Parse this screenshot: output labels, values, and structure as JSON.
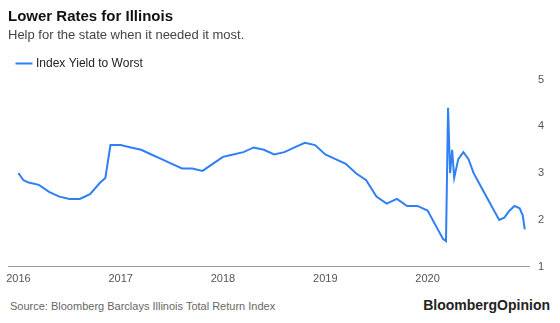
{
  "chart_data": {
    "type": "line",
    "title": "Lower Rates for Illinois",
    "subtitle": "Help for the state when it needed it most.",
    "source": "Source: Bloomberg Barclays Illinois Total Return Index",
    "credit": "BloombergOpinion",
    "legend": "top-left",
    "grid": false,
    "x": [
      2016.0,
      2016.05,
      2016.1,
      2016.2,
      2016.3,
      2016.4,
      2016.5,
      2016.6,
      2016.7,
      2016.8,
      2016.85,
      2016.9,
      2017.0,
      2017.1,
      2017.2,
      2017.3,
      2017.4,
      2017.5,
      2017.6,
      2017.7,
      2017.8,
      2017.9,
      2018.0,
      2018.1,
      2018.2,
      2018.3,
      2018.4,
      2018.5,
      2018.6,
      2018.7,
      2018.8,
      2018.9,
      2019.0,
      2019.1,
      2019.2,
      2019.3,
      2019.4,
      2019.5,
      2019.6,
      2019.7,
      2019.8,
      2019.9,
      2020.0,
      2020.1,
      2020.15,
      2020.18,
      2020.2,
      2020.22,
      2020.24,
      2020.26,
      2020.3,
      2020.35,
      2020.4,
      2020.45,
      2020.5,
      2020.55,
      2020.6,
      2020.65,
      2020.7,
      2020.75,
      2020.8,
      2020.85,
      2020.9,
      2020.93,
      2020.95
    ],
    "series": [
      {
        "name": "Index Yield to Worst",
        "color": "#2f7ff5",
        "values": [
          3.0,
          2.85,
          2.8,
          2.75,
          2.6,
          2.5,
          2.45,
          2.45,
          2.55,
          2.8,
          2.9,
          3.6,
          3.6,
          3.55,
          3.5,
          3.4,
          3.3,
          3.2,
          3.1,
          3.1,
          3.05,
          3.2,
          3.35,
          3.4,
          3.45,
          3.55,
          3.5,
          3.4,
          3.45,
          3.55,
          3.65,
          3.6,
          3.4,
          3.3,
          3.2,
          3.0,
          2.85,
          2.5,
          2.35,
          2.45,
          2.3,
          2.3,
          2.2,
          1.8,
          1.6,
          1.55,
          4.4,
          3.0,
          3.5,
          2.9,
          3.3,
          3.45,
          3.3,
          3.0,
          2.8,
          2.6,
          2.4,
          2.2,
          2.0,
          2.05,
          2.2,
          2.3,
          2.25,
          2.1,
          1.8
        ]
      }
    ],
    "xlim": [
      2015.9,
      2021.0
    ],
    "xticks": [
      2016,
      2017,
      2018,
      2019,
      2020
    ],
    "ylim": [
      1,
      5
    ],
    "yticks": [
      1,
      2,
      3,
      4,
      5
    ]
  }
}
